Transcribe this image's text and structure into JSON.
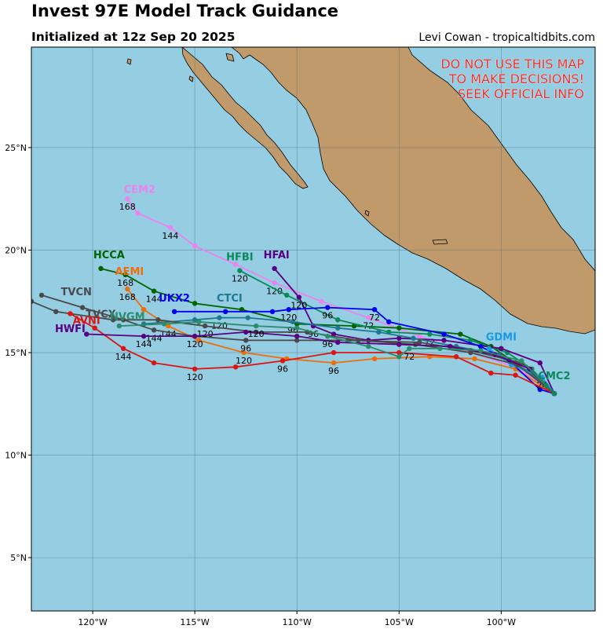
{
  "header": {
    "title": "Invest 97E Model Track Guidance",
    "subtitle": "Initialized at 12z Sep 20 2025",
    "credit": "Levi Cowan - tropicaltidbits.com"
  },
  "warning": {
    "lines": [
      "DO NOT USE THIS MAP",
      "TO MAKE DECISIONS!",
      "SEEK OFFICIAL INFO"
    ],
    "color": "#e8302a"
  },
  "colors": {
    "ocean": "#95cde3",
    "land": "#c19a6b",
    "grid": "#4f6f7a"
  },
  "axes": {
    "lon_range": [
      -123,
      -95.4
    ],
    "lat_range": [
      2.4,
      29.9
    ],
    "lon_ticks": [
      {
        "value": -120,
        "label": "120°W"
      },
      {
        "value": -115,
        "label": "115°W"
      },
      {
        "value": -110,
        "label": "110°W"
      },
      {
        "value": -105,
        "label": "105°W"
      },
      {
        "value": -100,
        "label": "100°W"
      }
    ],
    "lat_ticks": [
      {
        "value": 25,
        "label": "25°N"
      },
      {
        "value": 20,
        "label": "20°N"
      },
      {
        "value": 15,
        "label": "15°N"
      },
      {
        "value": 10,
        "label": "10°N"
      },
      {
        "value": 5,
        "label": "5°N"
      }
    ]
  },
  "chart_data": {
    "type": "map",
    "start": [
      -97.4,
      13.0
    ],
    "tracks": [
      {
        "name": "CEM2",
        "color": "#ee82ee",
        "label_at": [
          -117.7,
          22.8
        ],
        "points": [
          [
            -97.4,
            13.0
          ],
          [
            -99.3,
            14.3
          ],
          [
            -101.5,
            15.0
          ],
          [
            -104.0,
            15.8
          ],
          [
            -106.5,
            16.7
          ],
          [
            -108.8,
            17.5
          ],
          [
            -111.1,
            18.4
          ],
          [
            -113.0,
            19.3
          ],
          [
            -115.0,
            20.2
          ],
          [
            -116.2,
            21.1
          ],
          [
            -117.8,
            21.8
          ],
          [
            -118.3,
            22.5
          ]
        ],
        "tau_labels": [
          {
            "text": "72",
            "at": [
              -106.5,
              16.7
            ]
          },
          {
            "text": "120",
            "at": [
              -111.1,
              18.4
            ]
          },
          {
            "text": "144",
            "at": [
              -116.2,
              21.1
            ]
          },
          {
            "text": "168",
            "at": [
              -118.3,
              22.5
            ]
          }
        ]
      },
      {
        "name": "HCCA",
        "color": "#006400",
        "label_at": [
          -119.2,
          19.6
        ],
        "points": [
          [
            -97.4,
            13.0
          ],
          [
            -99.3,
            14.5
          ],
          [
            -100.5,
            15.3
          ],
          [
            -102.0,
            15.9
          ],
          [
            -105.0,
            16.2
          ],
          [
            -107.2,
            16.3
          ],
          [
            -110.0,
            16.4
          ],
          [
            -112.7,
            17.1
          ],
          [
            -115.0,
            17.4
          ],
          [
            -117.0,
            18.0
          ],
          [
            -118.4,
            18.8
          ],
          [
            -119.6,
            19.1
          ]
        ],
        "tau_labels": [
          {
            "text": "144",
            "at": [
              -117.0,
              18.0
            ]
          },
          {
            "text": "168",
            "at": [
              -118.4,
              18.8
            ]
          }
        ]
      },
      {
        "name": "AEMI",
        "color": "#ee6e0a",
        "label_at": [
          -118.2,
          18.8
        ],
        "points": [
          [
            -97.4,
            13.0
          ],
          [
            -99.3,
            14.2
          ],
          [
            -101.3,
            14.7
          ],
          [
            -103.5,
            14.8
          ],
          [
            -106.2,
            14.7
          ],
          [
            -108.2,
            14.5
          ],
          [
            -110.5,
            14.7
          ],
          [
            -112.6,
            15.0
          ],
          [
            -114.8,
            15.6
          ],
          [
            -116.3,
            16.3
          ],
          [
            -117.5,
            17.1
          ],
          [
            -118.3,
            18.1
          ]
        ],
        "tau_labels": [
          {
            "text": "96",
            "at": [
              -108.2,
              14.5
            ]
          },
          {
            "text": "120",
            "at": [
              -112.6,
              15.0
            ]
          },
          {
            "text": "144",
            "at": [
              -116.3,
              16.3
            ]
          },
          {
            "text": "168",
            "at": [
              -118.3,
              18.1
            ]
          }
        ]
      },
      {
        "name": "HFBI",
        "color": "#0a8a5a",
        "label_at": [
          -112.8,
          19.5
        ],
        "points": [
          [
            -97.4,
            13.0
          ],
          [
            -98.5,
            14.2
          ],
          [
            -99.7,
            15.0
          ],
          [
            -101.5,
            15.6
          ],
          [
            -103.5,
            15.9
          ],
          [
            -105.5,
            16.0
          ],
          [
            -108.0,
            16.6
          ],
          [
            -110.5,
            17.8
          ],
          [
            -112.8,
            19.0
          ]
        ],
        "tau_labels": [
          {
            "text": "72",
            "at": [
              -103.5,
              15.9
            ]
          },
          {
            "text": "120",
            "at": [
              -112.8,
              19.0
            ]
          }
        ]
      },
      {
        "name": "HFAI",
        "color": "#5a0080",
        "label_at": [
          -111.0,
          19.6
        ],
        "points": [
          [
            -97.4,
            13.0
          ],
          [
            -98.1,
            14.5
          ],
          [
            -100.0,
            15.2
          ],
          [
            -102.8,
            15.6
          ],
          [
            -105.0,
            15.7
          ],
          [
            -106.5,
            15.6
          ],
          [
            -108.2,
            15.9
          ],
          [
            -109.2,
            16.3
          ],
          [
            -109.9,
            17.7
          ],
          [
            -111.1,
            19.1
          ]
        ],
        "tau_labels": [
          {
            "text": "96",
            "at": [
              -109.2,
              16.3
            ]
          },
          {
            "text": "120",
            "at": [
              -109.9,
              17.7
            ]
          }
        ]
      },
      {
        "name": "CTCI",
        "color": "#1e7890",
        "label_at": [
          -113.3,
          17.5
        ],
        "points": [
          [
            -97.4,
            13.0
          ],
          [
            -98.7,
            14.1
          ],
          [
            -100.1,
            14.9
          ],
          [
            -102.2,
            15.3
          ],
          [
            -104.3,
            15.7
          ],
          [
            -106.0,
            16.0
          ],
          [
            -108.0,
            16.2
          ],
          [
            -110.2,
            16.5
          ],
          [
            -112.4,
            16.7
          ],
          [
            -113.8,
            16.7
          ],
          [
            -115.0,
            16.6
          ],
          [
            -117.5,
            16.4
          ]
        ],
        "tau_labels": [
          {
            "text": "96",
            "at": [
              -110.2,
              16.5
            ]
          },
          {
            "text": "120",
            "at": [
              -113.8,
              16.7
            ]
          }
        ]
      },
      {
        "name": "UKX2",
        "color": "#0000ee",
        "label_at": [
          -116.0,
          17.5
        ],
        "points": [
          [
            -97.4,
            13.0
          ],
          [
            -98.1,
            13.2
          ],
          [
            -99.5,
            14.5
          ],
          [
            -101.0,
            15.3
          ],
          [
            -102.8,
            15.9
          ],
          [
            -105.5,
            16.5
          ],
          [
            -106.2,
            17.1
          ],
          [
            -108.5,
            17.2
          ],
          [
            -110.4,
            17.1
          ],
          [
            -111.2,
            17.0
          ],
          [
            -113.5,
            17.0
          ],
          [
            -116.0,
            17.0
          ]
        ],
        "tau_labels": [
          {
            "text": "72",
            "at": [
              -106.2,
              17.1
            ]
          },
          {
            "text": "96",
            "at": [
              -108.5,
              17.2
            ]
          },
          {
            "text": "120",
            "at": [
              -110.4,
              17.1
            ]
          }
        ]
      },
      {
        "name": "GDMI",
        "color": "#1a9ae0",
        "label_at": [
          -100.0,
          15.6
        ],
        "points": [
          [
            -97.4,
            13.0
          ],
          [
            -98.0,
            13.8
          ],
          [
            -99.5,
            14.4
          ],
          [
            -100.6,
            15.2
          ]
        ],
        "tau_labels": [
          {
            "text": "24",
            "at": [
              -98.0,
              13.8
            ]
          }
        ]
      },
      {
        "name": "TVCN",
        "color": "#4a4a4a",
        "label_at": [
          -120.8,
          17.8
        ],
        "points": [
          [
            -97.4,
            13.0
          ],
          [
            -99.0,
            14.5
          ],
          [
            -101.5,
            15.1
          ],
          [
            -104.0,
            15.5
          ],
          [
            -107.5,
            15.6
          ],
          [
            -110.0,
            15.6
          ],
          [
            -112.5,
            15.6
          ],
          [
            -115.0,
            15.8
          ],
          [
            -117.0,
            16.1
          ],
          [
            -118.5,
            16.6
          ],
          [
            -120.5,
            17.2
          ],
          [
            -122.5,
            17.8
          ]
        ],
        "tau_labels": [
          {
            "text": "96",
            "at": [
              -112.5,
              15.6
            ]
          },
          {
            "text": "120",
            "at": [
              -115.0,
              15.8
            ]
          },
          {
            "text": "144",
            "at": [
              -117.0,
              16.1
            ]
          }
        ]
      },
      {
        "name": "TVCX",
        "color": "#4a4a4a",
        "label_at": [
          -119.6,
          16.7
        ],
        "points": [
          [
            -97.4,
            13.0
          ],
          [
            -99.2,
            14.4
          ],
          [
            -101.5,
            15.0
          ],
          [
            -104.2,
            15.4
          ],
          [
            -107.0,
            15.6
          ],
          [
            -109.5,
            16.0
          ],
          [
            -112.0,
            16.0
          ],
          [
            -114.5,
            16.3
          ],
          [
            -116.8,
            16.6
          ],
          [
            -119.0,
            16.6
          ],
          [
            -121.8,
            17.0
          ],
          [
            -123.0,
            17.5
          ]
        ],
        "tau_labels": [
          {
            "text": "120",
            "at": [
              -114.5,
              16.3
            ]
          }
        ]
      },
      {
        "name": "AVNI",
        "color": "#dc1414",
        "label_at": [
          -120.3,
          16.4
        ],
        "points": [
          [
            -97.4,
            13.0
          ],
          [
            -99.3,
            13.9
          ],
          [
            -100.5,
            14.0
          ],
          [
            -102.2,
            14.8
          ],
          [
            -105.0,
            15.0
          ],
          [
            -108.2,
            15.0
          ],
          [
            -110.7,
            14.6
          ],
          [
            -113.0,
            14.3
          ],
          [
            -115.0,
            14.2
          ],
          [
            -117.0,
            14.5
          ],
          [
            -118.5,
            15.2
          ],
          [
            -119.9,
            16.2
          ],
          [
            -121.1,
            16.9
          ]
        ],
        "tau_labels": [
          {
            "text": "96",
            "at": [
              -110.7,
              14.6
            ]
          },
          {
            "text": "120",
            "at": [
              -115.0,
              14.2
            ]
          },
          {
            "text": "144",
            "at": [
              -118.5,
              15.2
            ]
          }
        ]
      },
      {
        "name": "HWFI",
        "color": "#5a0080",
        "label_at": [
          -121.1,
          16.0
        ],
        "points": [
          [
            -97.4,
            13.0
          ],
          [
            -98.6,
            14.2
          ],
          [
            -100.3,
            14.9
          ],
          [
            -102.5,
            15.3
          ],
          [
            -105.0,
            15.4
          ],
          [
            -108.0,
            15.5
          ],
          [
            -110.0,
            15.8
          ],
          [
            -112.5,
            16.0
          ],
          [
            -115.0,
            15.8
          ],
          [
            -117.5,
            15.8
          ],
          [
            -120.3,
            15.9
          ]
        ],
        "tau_labels": [
          {
            "text": "144",
            "at": [
              -117.5,
              15.8
            ]
          }
        ]
      },
      {
        "name": "NVGM",
        "color": "#2a8c6a",
        "label_at": [
          -118.3,
          16.6
        ],
        "points": [
          [
            -97.4,
            13.0
          ],
          [
            -99.0,
            14.6
          ],
          [
            -101.0,
            15.1
          ],
          [
            -103.0,
            15.2
          ],
          [
            -104.5,
            15.2
          ],
          [
            -105.0,
            14.8
          ],
          [
            -106.5,
            15.3
          ],
          [
            -108.5,
            15.8
          ],
          [
            -110.0,
            16.2
          ],
          [
            -112.0,
            16.3
          ],
          [
            -114.8,
            16.5
          ],
          [
            -116.5,
            16.4
          ],
          [
            -118.7,
            16.3
          ]
        ],
        "tau_labels": [
          {
            "text": "72",
            "at": [
              -104.5,
              15.2
            ]
          },
          {
            "text": "96",
            "at": [
              -108.5,
              15.8
            ]
          },
          {
            "text": "120",
            "at": [
              -112.0,
              16.3
            ]
          }
        ]
      },
      {
        "name": "CMC2",
        "color": "#0a8a5a",
        "label_at": [
          -97.4,
          13.7
        ],
        "points": [
          [
            -97.4,
            13.0
          ],
          [
            -97.8,
            13.4
          ]
        ],
        "tau_labels": []
      }
    ]
  }
}
